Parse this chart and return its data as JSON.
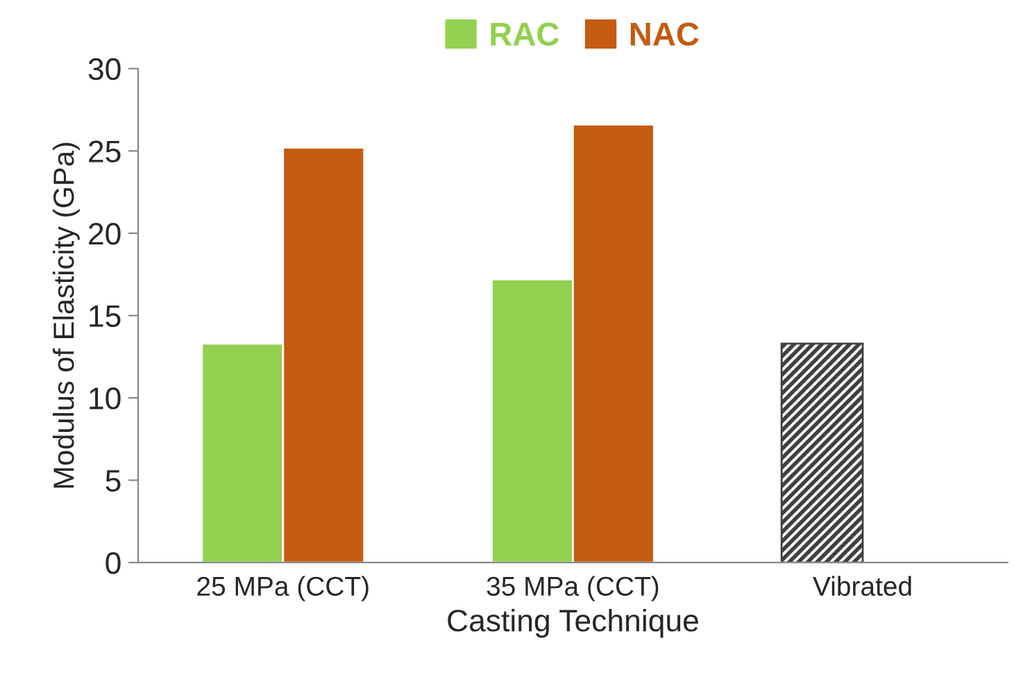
{
  "chart_data": {
    "type": "bar",
    "categories": [
      "25 MPa (CCT)",
      "35 MPa (CCT)",
      "Vibrated"
    ],
    "series": [
      {
        "name": "RAC",
        "color": "#92d050",
        "colors": [
          "#92d050",
          "#92d050",
          "#404040"
        ],
        "values": [
          13.3,
          17.2,
          13.3
        ]
      },
      {
        "name": "NAC",
        "color": "#c55a11",
        "values": [
          25.2,
          26.6,
          null
        ]
      }
    ],
    "xlabel": "Casting Technique",
    "ylabel": "Modulus of Elasticity (GPa)",
    "ylim": [
      0,
      30
    ],
    "yticks": [
      0,
      5,
      10,
      15,
      20,
      25,
      30
    ],
    "grid": false,
    "legend": "top"
  }
}
